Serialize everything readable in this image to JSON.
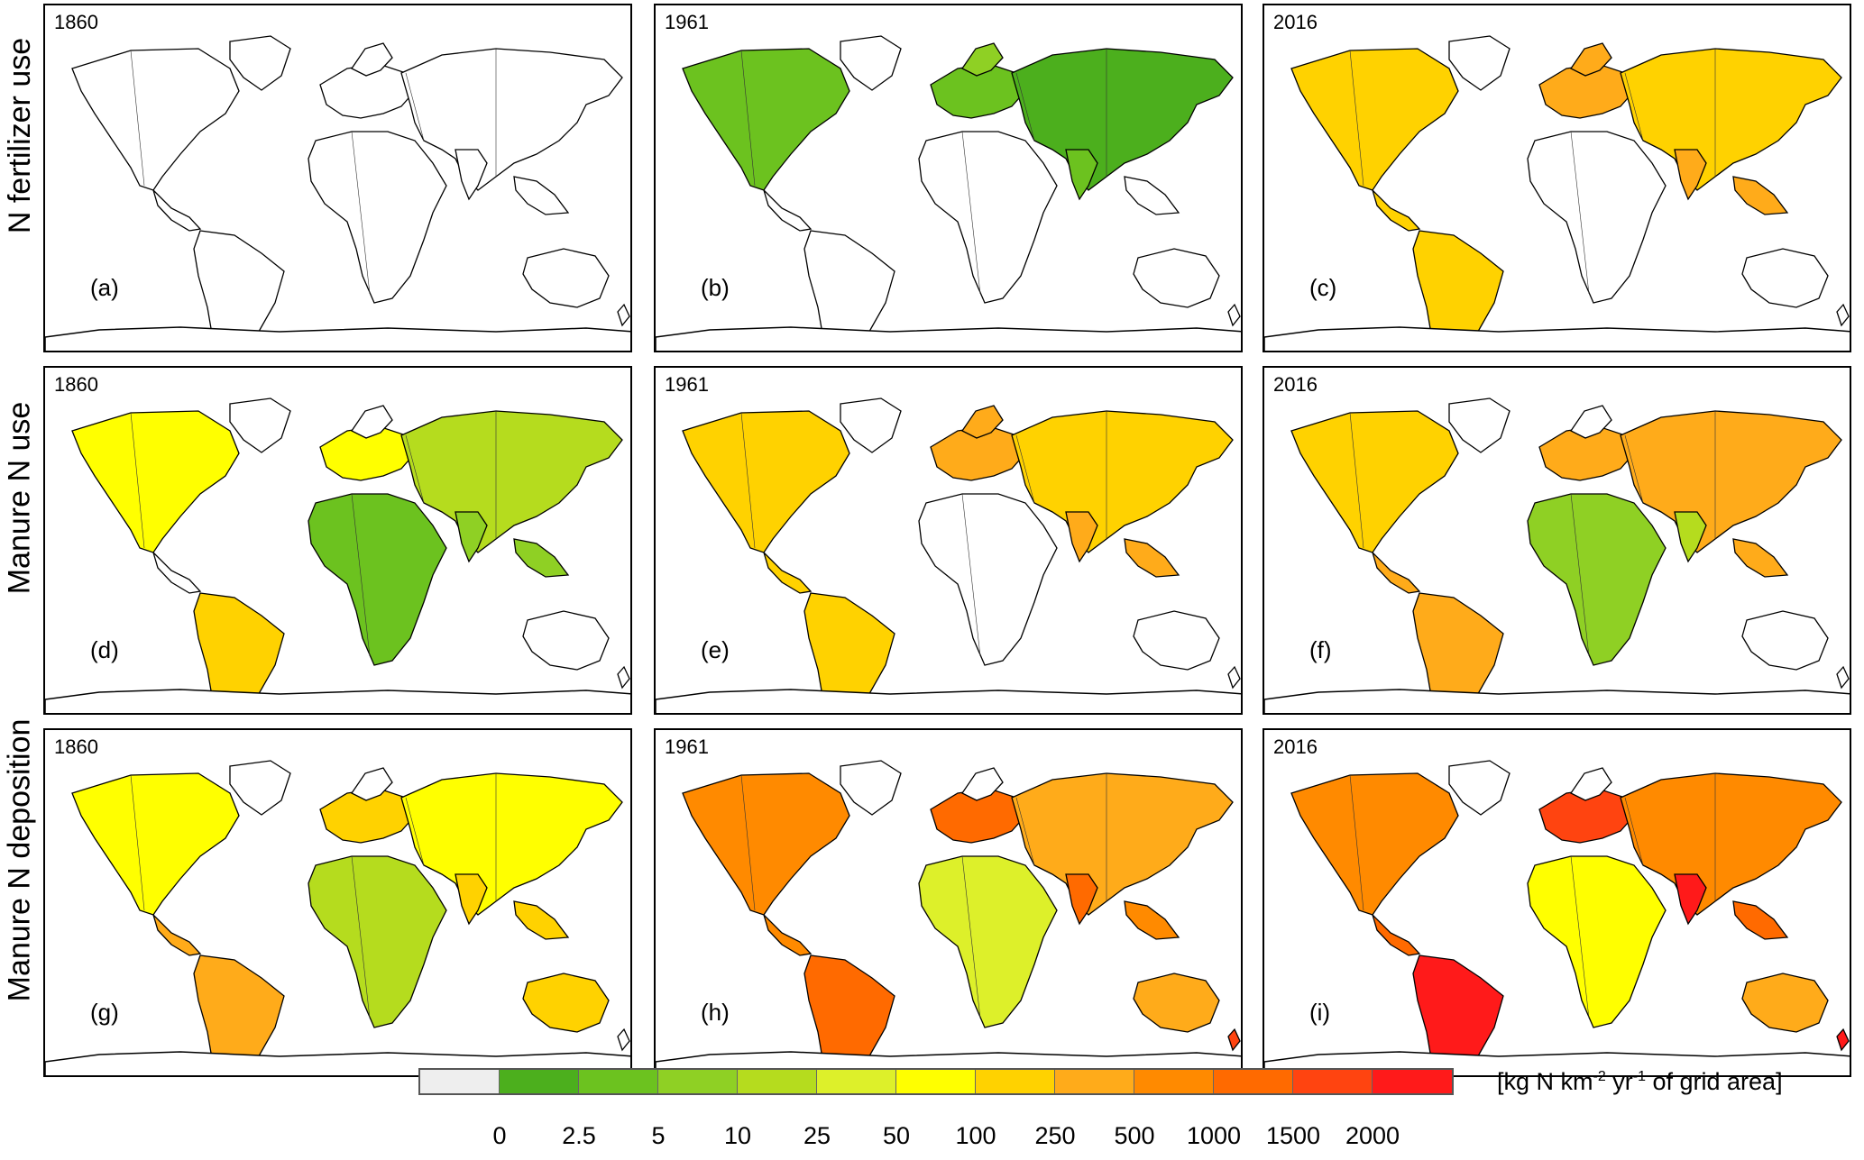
{
  "rows": [
    {
      "label": "N fertilizer use",
      "panels": [
        {
          "year": "1860",
          "label": "(a)",
          "intensity": 0
        },
        {
          "year": "1961",
          "label": "(b)",
          "intensity": 1
        },
        {
          "year": "2016",
          "label": "(c)",
          "intensity": 3
        }
      ]
    },
    {
      "label": "Manure N use",
      "panels": [
        {
          "year": "1860",
          "label": "(d)",
          "intensity": 2
        },
        {
          "year": "1961",
          "label": "(e)",
          "intensity": 3
        },
        {
          "year": "2016",
          "label": "(f)",
          "intensity": 4
        }
      ]
    },
    {
      "label": "Manure N deposition",
      "panels": [
        {
          "year": "1860",
          "label": "(g)",
          "intensity": 5
        },
        {
          "year": "1961",
          "label": "(h)",
          "intensity": 6
        },
        {
          "year": "2016",
          "label": "(i)",
          "intensity": 7
        }
      ]
    }
  ],
  "legend": {
    "unit_prefix": "[kg N km",
    "unit_sup1": "-2",
    "unit_mid": " yr",
    "unit_sup2": "-1",
    "unit_suffix": " of grid area]",
    "ticks": [
      "0",
      "2.5",
      "5",
      "10",
      "25",
      "50",
      "100",
      "250",
      "500",
      "1000",
      "1500",
      "2000"
    ],
    "colors": [
      "#eeeeee",
      "#4caf1d",
      "#6cc21f",
      "#8fd024",
      "#b5dc1e",
      "#ddf02a",
      "#ffff00",
      "#ffd200",
      "#ffab1a",
      "#ff8a00",
      "#ff6a00",
      "#ff4410",
      "#ff1a1a"
    ]
  }
}
